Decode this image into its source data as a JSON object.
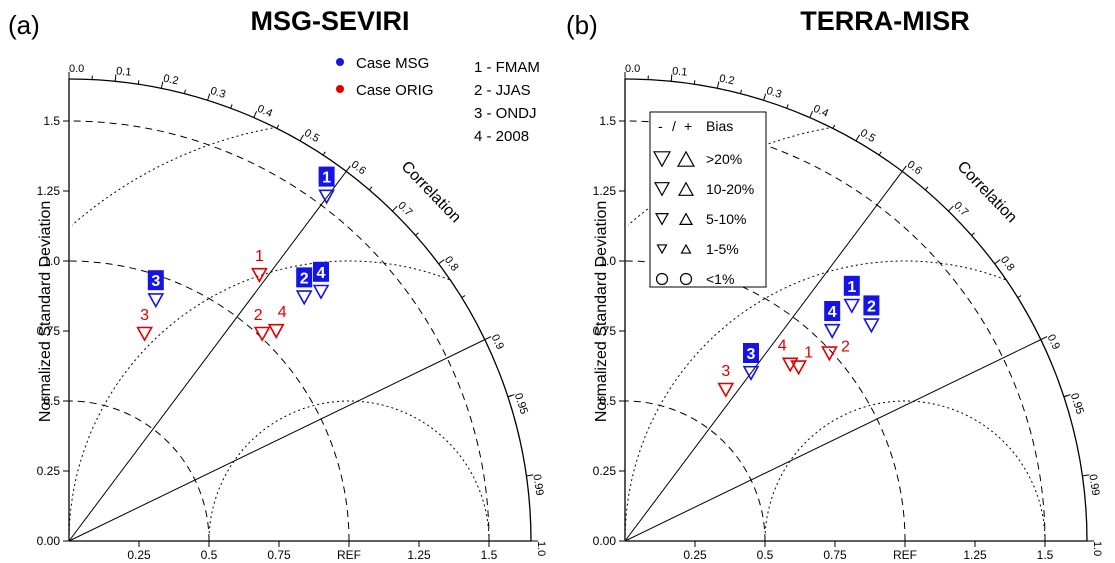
{
  "chart_data": [
    {
      "type": "scatter",
      "subtype": "taylor-diagram",
      "panel_label": "(a)",
      "title": "MSG-SEVIRI",
      "ylabel": "Normalized Standard Deviation",
      "correlation_label": "Correlation",
      "std_max": 1.65,
      "std_ticks": [
        "0.00",
        "0.25",
        "0.5",
        "0.75",
        "1.0",
        "1.25",
        "1.5"
      ],
      "x_ticks": [
        "0.25",
        "0.5",
        "0.75",
        "REF",
        "1.25",
        "1.5"
      ],
      "corr_ticks": [
        "0.0",
        "0.1",
        "0.2",
        "0.3",
        "0.4",
        "0.5",
        "0.6",
        "0.7",
        "0.8",
        "0.9",
        "0.95",
        "0.99",
        "1.0"
      ],
      "series": [
        {
          "name": "Case MSG",
          "color": "#1414e6",
          "points": [
            {
              "label": "1",
              "x": 0.92,
              "y": 1.23
            },
            {
              "label": "2",
              "x": 0.84,
              "y": 0.87
            },
            {
              "label": "3",
              "x": 0.31,
              "y": 0.86
            },
            {
              "label": "4",
              "x": 0.9,
              "y": 0.89
            }
          ]
        },
        {
          "name": "Case ORIG",
          "color": "#e00000",
          "points": [
            {
              "label": "1",
              "x": 0.68,
              "y": 0.95
            },
            {
              "label": "2",
              "x": 0.69,
              "y": 0.74
            },
            {
              "label": "3",
              "x": 0.27,
              "y": 0.74
            },
            {
              "label": "4",
              "x": 0.74,
              "y": 0.75
            }
          ]
        }
      ],
      "legend": {
        "cases": [
          "Case MSG",
          "Case ORIG"
        ],
        "seasons": [
          "1 - FMAM",
          "2 - JJAS",
          "3 - ONDJ",
          "4 - 2008"
        ]
      }
    },
    {
      "type": "scatter",
      "subtype": "taylor-diagram",
      "panel_label": "(b)",
      "title": "TERRA-MISR",
      "ylabel": "Normalized Standard Deviation",
      "correlation_label": "Correlation",
      "std_max": 1.65,
      "std_ticks": [
        "0.00",
        "0.25",
        "0.5",
        "0.75",
        "1.0",
        "1.25",
        "1.5"
      ],
      "x_ticks": [
        "0.25",
        "0.5",
        "0.75",
        "REF",
        "1.25",
        "1.5"
      ],
      "corr_ticks": [
        "0.0",
        "0.1",
        "0.2",
        "0.3",
        "0.4",
        "0.5",
        "0.6",
        "0.7",
        "0.8",
        "0.9",
        "0.95",
        "0.99",
        "1.0"
      ],
      "series": [
        {
          "name": "Case MSG",
          "color": "#1414e6",
          "points": [
            {
              "label": "1",
              "x": 0.81,
              "y": 0.84
            },
            {
              "label": "2",
              "x": 0.88,
              "y": 0.77
            },
            {
              "label": "3",
              "x": 0.45,
              "y": 0.6
            },
            {
              "label": "4",
              "x": 0.74,
              "y": 0.75
            }
          ]
        },
        {
          "name": "Case ORIG",
          "color": "#e00000",
          "points": [
            {
              "label": "1",
              "x": 0.62,
              "y": 0.62
            },
            {
              "label": "2",
              "x": 0.73,
              "y": 0.67
            },
            {
              "label": "3",
              "x": 0.36,
              "y": 0.54
            },
            {
              "label": "4",
              "x": 0.59,
              "y": 0.63
            }
          ]
        }
      ],
      "bias_legend": {
        "header": [
          "-",
          "/",
          "+",
          "Bias"
        ],
        "rows": [
          ">20%",
          "10-20%",
          "5-10%",
          "1-5%",
          "<1%"
        ]
      }
    }
  ]
}
